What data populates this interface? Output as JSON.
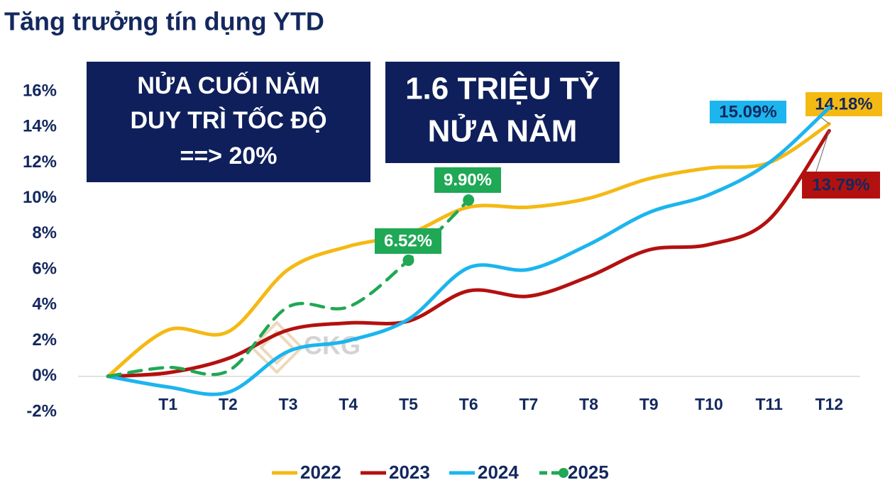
{
  "chart_data": {
    "type": "line",
    "title": "Tăng trưởng tín dụng YTD",
    "annotations": [
      {
        "lines": [
          "NỬA CUỐI NĂM",
          "DUY TRÌ TỐC ĐỘ",
          "==> 20%"
        ]
      },
      {
        "lines": [
          "1.6 TRIỆU TỶ",
          "NỬA NĂM"
        ]
      }
    ],
    "watermark": "CKG",
    "categories": [
      null,
      "T1",
      "T2",
      "T3",
      "T4",
      "T5",
      "T6",
      "T7",
      "T8",
      "T9",
      "T10",
      "T11",
      "T12"
    ],
    "series": [
      {
        "name": "2022",
        "color": "#f5b914",
        "dashed": false,
        "values": [
          0,
          2.6,
          2.5,
          6.0,
          7.3,
          8.0,
          9.5,
          9.5,
          10.0,
          11.1,
          11.7,
          12.0,
          14.18
        ],
        "value_labels": [
          null,
          null,
          null,
          null,
          null,
          null,
          null,
          null,
          null,
          null,
          null,
          null,
          "14.18%"
        ]
      },
      {
        "name": "2023",
        "color": "#b3110f",
        "dashed": false,
        "values": [
          0,
          0.2,
          1.0,
          2.6,
          3.0,
          3.1,
          4.8,
          4.5,
          5.6,
          7.1,
          7.4,
          8.8,
          13.79
        ],
        "value_labels": [
          null,
          null,
          null,
          null,
          null,
          null,
          null,
          null,
          null,
          null,
          null,
          null,
          "13.79%"
        ]
      },
      {
        "name": "2024",
        "color": "#1cb5ee",
        "dashed": false,
        "values": [
          0,
          -0.6,
          -0.9,
          1.4,
          2.0,
          3.2,
          6.1,
          6.0,
          7.4,
          9.2,
          10.2,
          12.0,
          15.09
        ],
        "value_labels": [
          null,
          null,
          null,
          null,
          null,
          null,
          null,
          null,
          null,
          null,
          null,
          null,
          "15.09%"
        ]
      },
      {
        "name": "2025",
        "color": "#1fa855",
        "dashed": true,
        "values": [
          0,
          0.5,
          0.3,
          3.9,
          3.9,
          6.52,
          9.9,
          null,
          null,
          null,
          null,
          null,
          null
        ],
        "value_labels": [
          null,
          null,
          null,
          null,
          null,
          "6.52%",
          "9.90%",
          null,
          null,
          null,
          null,
          null,
          null
        ]
      }
    ],
    "ylim": [
      -2,
      16
    ],
    "yticks": [
      {
        "value": -2,
        "label": "-2%"
      },
      {
        "value": 0,
        "label": "0%"
      },
      {
        "value": 2,
        "label": "2%"
      },
      {
        "value": 4,
        "label": "4%"
      },
      {
        "value": 6,
        "label": "6%"
      },
      {
        "value": 8,
        "label": "8%"
      },
      {
        "value": 10,
        "label": "10%"
      },
      {
        "value": 12,
        "label": "12%"
      },
      {
        "value": 14,
        "label": "14%"
      },
      {
        "value": 16,
        "label": "16%"
      }
    ],
    "grid": false,
    "legend": "bottom"
  }
}
